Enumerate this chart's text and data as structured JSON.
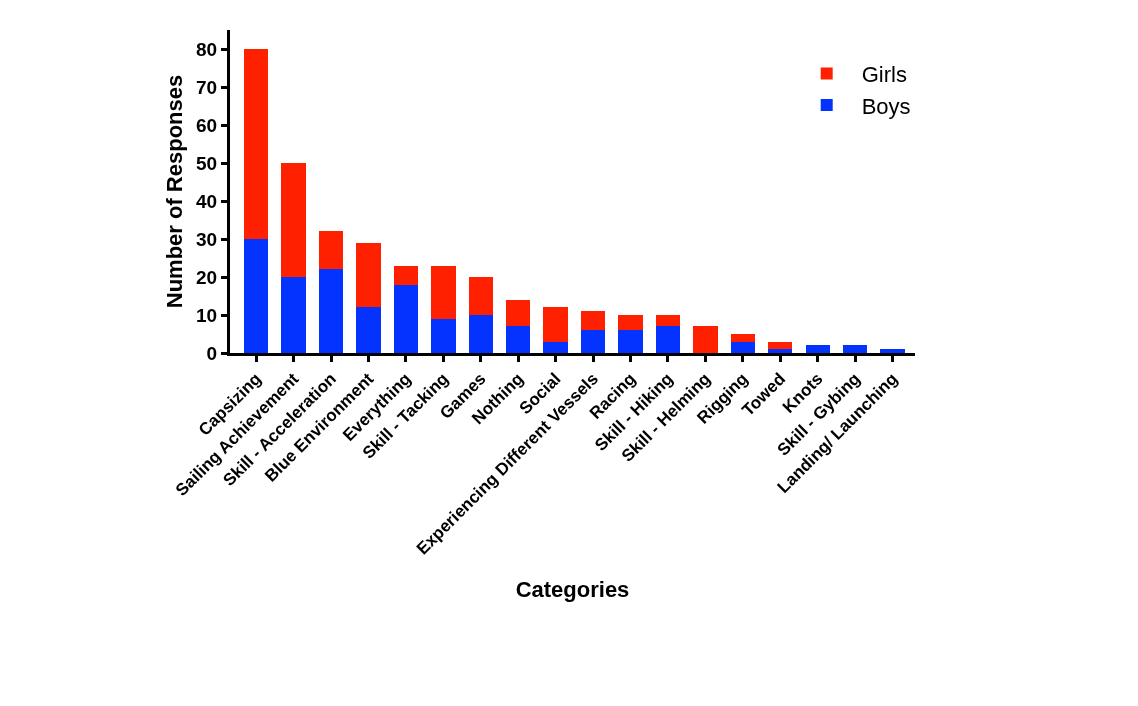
{
  "chart_data": {
    "type": "bar",
    "stacked": true,
    "xlabel": "Categories",
    "ylabel": "Number of Responses",
    "categories": [
      "Capsizing",
      "Sailing Achievement",
      "Skill - Acceleration",
      "Blue Environment",
      "Everything",
      "Skill - Tacking",
      "Games",
      "Nothing",
      "Social",
      "Experiencing Different Vessels",
      "Racing",
      "Skill - Hiking",
      "Skill - Helming",
      "Rigging",
      "Towed",
      "Knots",
      "Skill - Gybing",
      "Landing/ Launching"
    ],
    "series": [
      {
        "name": "Boys",
        "color": "#0433ff",
        "values": [
          30,
          20,
          22,
          12,
          18,
          9,
          10,
          7,
          3,
          6,
          6,
          7,
          0,
          3,
          1,
          2,
          2,
          1
        ]
      },
      {
        "name": "Girls",
        "color": "#ff2000",
        "values": [
          50,
          30,
          10,
          17,
          5,
          14,
          10,
          7,
          9,
          5,
          4,
          3,
          7,
          2,
          2,
          0,
          0,
          0
        ]
      }
    ],
    "ylim": [
      0,
      85
    ],
    "yticks": [
      0,
      10,
      20,
      30,
      40,
      50,
      60,
      70,
      80
    ],
    "legend": "top right"
  }
}
